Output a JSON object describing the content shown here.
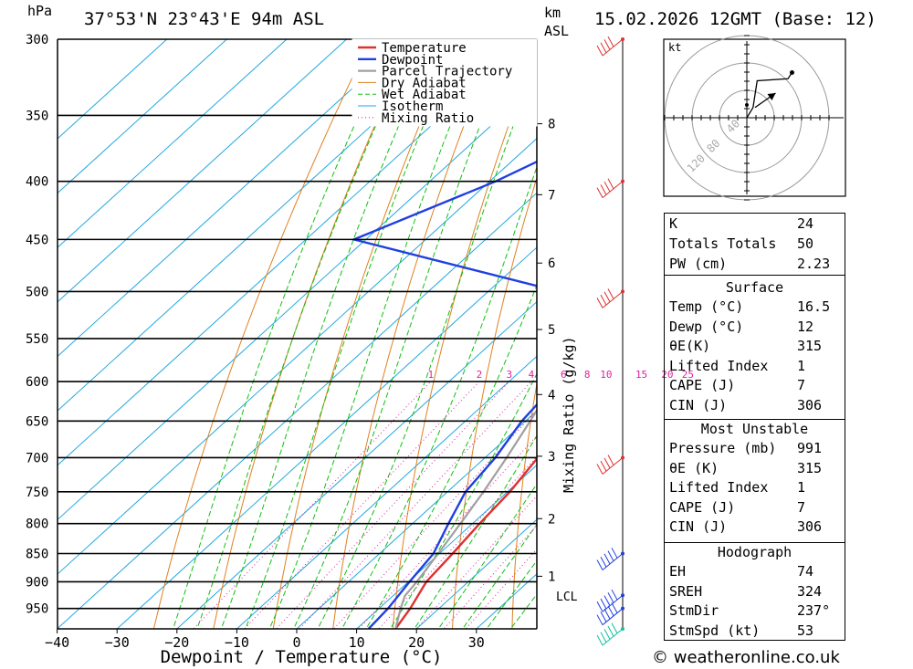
{
  "header": {
    "hpa_label": "hPa",
    "location": "37°53'N 23°43'E 94m ASL",
    "km_label": "km",
    "asl_label": "ASL",
    "datetime": "15.02.2026 12GMT (Base: 12)"
  },
  "chart_data": {
    "type": "line",
    "subtype": "skew-T log-P diagram",
    "xlabel": "Dewpoint / Temperature (°C)",
    "ylabel": "hPa",
    "x_ticks": [
      -40,
      -30,
      -20,
      -10,
      0,
      10,
      20,
      30
    ],
    "pressure_levels": [
      300,
      350,
      400,
      450,
      500,
      550,
      600,
      650,
      700,
      750,
      800,
      850,
      900,
      950
    ],
    "xlim": [
      -40,
      40
    ],
    "ylim_hpa": [
      300,
      990
    ],
    "km_ticks": [
      {
        "km": "1",
        "p": 890
      },
      {
        "km": "2",
        "p": 792
      },
      {
        "km": "3",
        "p": 698
      },
      {
        "km": "4",
        "p": 616
      },
      {
        "km": "5",
        "p": 540
      },
      {
        "km": "6",
        "p": 472
      },
      {
        "km": "7",
        "p": 411
      },
      {
        "km": "8",
        "p": 356
      }
    ],
    "lcl_label": "LCL",
    "lcl_p": 926,
    "mixing_ratio_label": "Mixing Ratio (g/kg)",
    "mixing_ratio_values": [
      "1",
      "2",
      "3",
      "4",
      "6",
      "8",
      "10",
      "15",
      "20",
      "25"
    ],
    "legend": [
      "Temperature",
      "Dewpoint",
      "Parcel Trajectory",
      "Dry Adiabat",
      "Wet Adiabat",
      "Isotherm",
      "Mixing Ratio"
    ],
    "legend_position": "top-right",
    "series": [
      {
        "name": "Temperature",
        "color": "#e03030",
        "points": [
          [
            990,
            16.5
          ],
          [
            950,
            15.2
          ],
          [
            900,
            13
          ],
          [
            850,
            12.2
          ],
          [
            800,
            11.2
          ],
          [
            750,
            10.4
          ],
          [
            700,
            8.8
          ],
          [
            650,
            5.8
          ],
          [
            600,
            2.4
          ],
          [
            550,
            -0.2
          ],
          [
            500,
            -3.3
          ],
          [
            450,
            -5.5
          ],
          [
            400,
            -14
          ],
          [
            350,
            -24.6
          ],
          [
            300,
            -31.5
          ]
        ]
      },
      {
        "name": "Dewpoint",
        "color": "#2040e0",
        "points": [
          [
            990,
            12
          ],
          [
            950,
            11.5
          ],
          [
            900,
            10.2
          ],
          [
            850,
            9
          ],
          [
            800,
            6
          ],
          [
            750,
            3
          ],
          [
            700,
            1.7
          ],
          [
            650,
            -0.6
          ],
          [
            600,
            -1.8
          ],
          [
            550,
            -3
          ],
          [
            500,
            -18.2
          ],
          [
            450,
            -62
          ],
          [
            400,
            -49
          ],
          [
            350,
            -38
          ],
          [
            300,
            -49
          ]
        ]
      },
      {
        "name": "Parcel Trajectory",
        "color": "#a0a0a0",
        "points": [
          [
            990,
            16.5
          ],
          [
            950,
            13.6
          ],
          [
            926,
            12
          ],
          [
            900,
            11.4
          ],
          [
            850,
            9.8
          ],
          [
            800,
            8
          ],
          [
            750,
            6
          ],
          [
            700,
            3.6
          ],
          [
            650,
            0.8
          ],
          [
            600,
            -2.4
          ],
          [
            550,
            -6
          ],
          [
            500,
            -10.6
          ],
          [
            450,
            -16
          ],
          [
            400,
            -22.5
          ],
          [
            350,
            -31
          ],
          [
            300,
            -41
          ]
        ]
      }
    ]
  },
  "hodograph": {
    "unit_label": "kt",
    "ring_labels": [
      "40",
      "80",
      "120"
    ],
    "trace": [
      [
        0,
        0
      ],
      [
        3,
        5
      ],
      [
        5,
        18
      ],
      [
        20,
        19
      ],
      [
        22,
        22
      ]
    ],
    "storm_motion": [
      [
        4,
        5
      ],
      [
        14,
        12
      ]
    ]
  },
  "wind_barbs_pressures": [
    300,
    400,
    500,
    700,
    850,
    925,
    950,
    990
  ],
  "indices": {
    "k_label": "K",
    "k_value": "24",
    "tt_label": "Totals Totals",
    "tt_value": "50",
    "pw_label": "PW (cm)",
    "pw_value": "2.23",
    "surface_title": "Surface",
    "surface": [
      {
        "label": "Temp (°C)",
        "value": "16.5"
      },
      {
        "label": "Dewp (°C)",
        "value": "12"
      },
      {
        "label": "θE(K)",
        "value": "315"
      },
      {
        "label": "Lifted Index",
        "value": "1"
      },
      {
        "label": "CAPE (J)",
        "value": "7"
      },
      {
        "label": "CIN (J)",
        "value": "306"
      }
    ],
    "mu_title": "Most Unstable",
    "most_unstable": [
      {
        "label": "Pressure (mb)",
        "value": "991"
      },
      {
        "label": "θE (K)",
        "value": "315"
      },
      {
        "label": "Lifted Index",
        "value": "1"
      },
      {
        "label": "CAPE (J)",
        "value": "7"
      },
      {
        "label": "CIN (J)",
        "value": "306"
      }
    ],
    "hodo_title": "Hodograph",
    "hodograph": [
      {
        "label": "EH",
        "value": "74"
      },
      {
        "label": "SREH",
        "value": "324"
      },
      {
        "label": "StmDir",
        "value": "237°"
      },
      {
        "label": "StmSpd (kt)",
        "value": "53"
      }
    ]
  },
  "footer": {
    "credit": "© weatheronline.co.uk"
  },
  "colors": {
    "temperature": "#e03030",
    "dewpoint": "#2040e0",
    "parcel": "#a0a0a0",
    "dry_adiabat": "#e08020",
    "wet_adiabat": "#10c010",
    "isotherm": "#20a8e0",
    "mixing_ratio": "#e020a0",
    "barb": "#e03030",
    "barb_low": "#2040e0",
    "barb_surface": "#10c0a0"
  }
}
